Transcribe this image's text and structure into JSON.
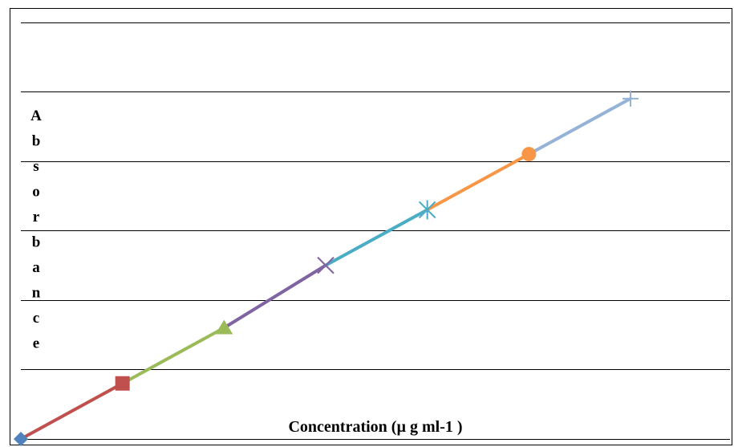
{
  "chart_data": {
    "type": "line",
    "title": "",
    "xlabel": "Concentration (µ g ml-1  )",
    "ylabel": "Absorbance",
    "ylabel_letters": [
      "A",
      "b",
      "s",
      "o",
      "r",
      "b",
      "a",
      "n",
      "c",
      "e"
    ],
    "grid": true,
    "legend": "none",
    "tick_labels_shown": false,
    "x": [
      0,
      1,
      2,
      3,
      4,
      5,
      6
    ],
    "y": [
      0,
      0.8,
      1.6,
      2.5,
      3.3,
      4.1,
      4.9
    ],
    "xlim": [
      0,
      6
    ],
    "ylim": [
      0,
      6.1
    ],
    "gridlines_y": [
      1,
      2,
      3,
      4,
      5,
      6
    ],
    "segments": [
      {
        "color": "#C0504D",
        "marker": "diamond",
        "marker_color": "#4F81BD"
      },
      {
        "color": "#9BBB59",
        "marker": "square",
        "marker_color": "#C0504D"
      },
      {
        "color": "#8064A2",
        "marker": "triangle",
        "marker_color": "#9BBB59"
      },
      {
        "color": "#4BACC6",
        "marker": "x",
        "marker_color": "#8064A2"
      },
      {
        "color": "#F79646",
        "marker": "star",
        "marker_color": "#4BACC6"
      },
      {
        "color": "#95B3D7",
        "marker": "circle",
        "marker_color": "#F79646"
      },
      {
        "color": null,
        "marker": "plus",
        "marker_color": "#95B3D7"
      }
    ]
  }
}
